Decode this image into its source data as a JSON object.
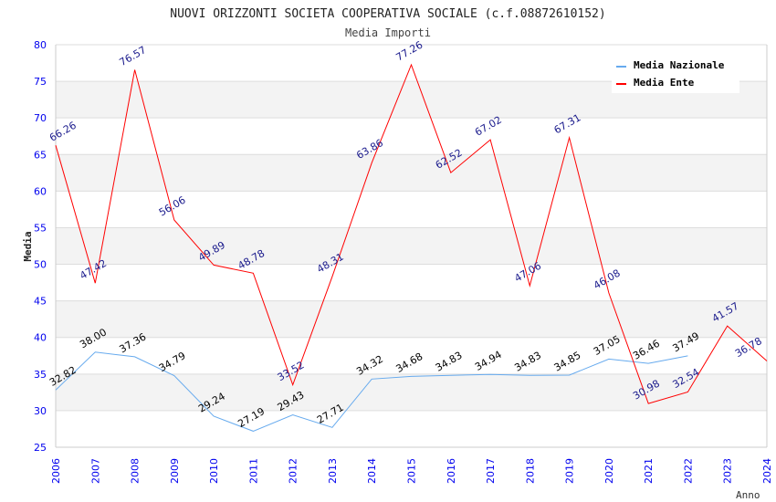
{
  "chart_data": {
    "type": "line",
    "title": "NUOVI ORIZZONTI SOCIETA COOPERATIVA SOCIALE (c.f.08872610152)",
    "subtitle": "Media Importi",
    "xlabel": "Anno",
    "ylabel": "Media",
    "ylim": [
      25,
      80
    ],
    "yticks": [
      25,
      30,
      35,
      40,
      45,
      50,
      55,
      60,
      65,
      70,
      75,
      80
    ],
    "x": [
      2006,
      2007,
      2008,
      2009,
      2010,
      2011,
      2012,
      2013,
      2014,
      2015,
      2016,
      2017,
      2018,
      2019,
      2020,
      2021,
      2022,
      2023,
      2024
    ],
    "legend_position": "top-right",
    "grid": true,
    "series": [
      {
        "name": "Media Nazionale",
        "color": "#66aaee",
        "label_color": "#000000",
        "values": [
          32.82,
          38.0,
          37.36,
          34.79,
          29.24,
          27.19,
          29.43,
          27.71,
          34.32,
          34.68,
          34.83,
          34.94,
          34.83,
          34.85,
          37.05,
          36.46,
          37.49,
          null,
          null
        ]
      },
      {
        "name": "Media Ente",
        "color": "#ff0000",
        "label_color": "#1a1a8c",
        "values": [
          66.26,
          47.42,
          76.57,
          56.06,
          49.89,
          48.78,
          33.52,
          48.31,
          63.86,
          77.26,
          62.52,
          67.02,
          47.06,
          67.31,
          46.08,
          30.98,
          32.54,
          41.57,
          36.78
        ]
      }
    ]
  }
}
